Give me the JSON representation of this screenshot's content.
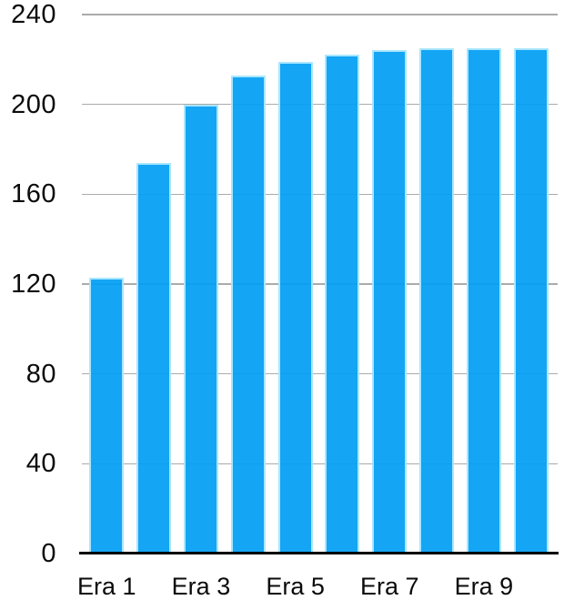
{
  "chart_data": {
    "type": "bar",
    "title": "",
    "xlabel": "",
    "ylabel": "",
    "n_bars": 10,
    "values": [
      123,
      174,
      200,
      213,
      219,
      222,
      224,
      225,
      225,
      225
    ],
    "x_tick_labels": [
      "Era 1",
      "Era 3",
      "Era 5",
      "Era 7",
      "Era 9"
    ],
    "x_tick_bar_indices": [
      0,
      2,
      4,
      6,
      8
    ],
    "y_ticks": [
      0,
      40,
      80,
      120,
      160,
      200,
      240
    ],
    "ylim": [
      0,
      240
    ],
    "grid": true,
    "legend": false,
    "colors": {
      "bar_fill": "#029EF4",
      "bar_edge": "#A9E6FE",
      "gridline": "#ABABAB",
      "axis_line": "#000000",
      "text": "#0B0B0B",
      "background": "#FFFFFF"
    }
  }
}
